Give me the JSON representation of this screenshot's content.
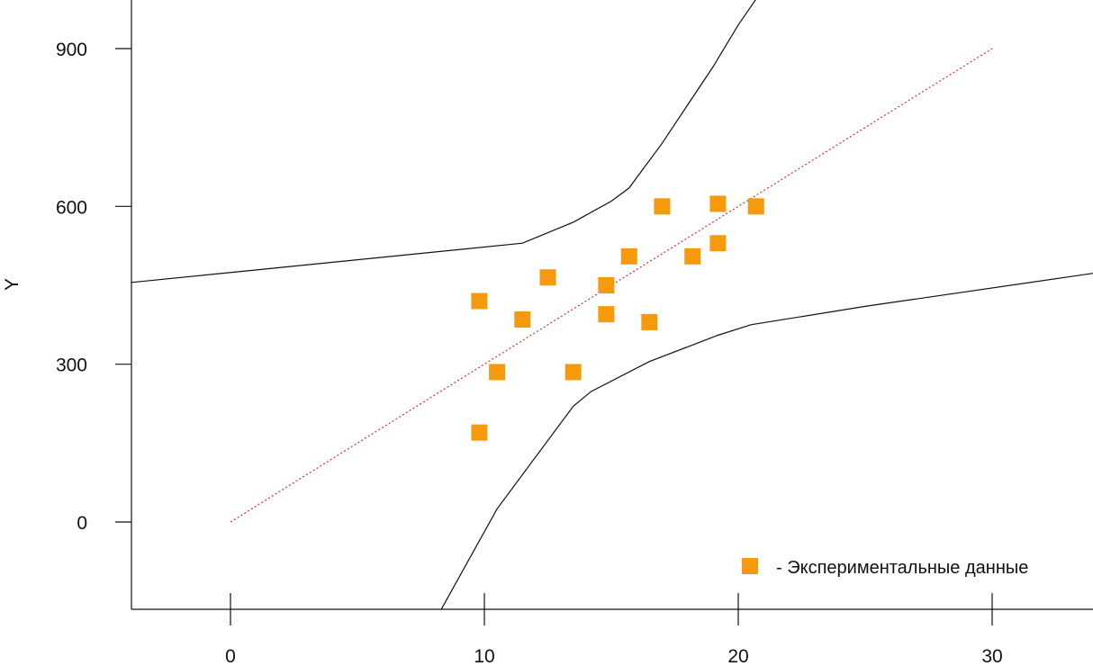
{
  "chart_data": {
    "type": "scatter",
    "xlabel": "",
    "ylabel": "Y",
    "xlim": [
      -4,
      35
    ],
    "ylim": [
      -165,
      1000
    ],
    "x_ticks": [
      {
        "value": 0,
        "label": "0"
      },
      {
        "value": 10,
        "label": "10"
      },
      {
        "value": 20,
        "label": "20"
      },
      {
        "value": 30,
        "label": "30"
      }
    ],
    "y_ticks": [
      {
        "value": 0,
        "label": "0"
      },
      {
        "value": 300,
        "label": "300"
      },
      {
        "value": 600,
        "label": "600"
      },
      {
        "value": 900,
        "label": "900"
      }
    ],
    "grid": false,
    "legend_position": "bottom-right",
    "legend": [
      {
        "label": "- Экспериментальные данные",
        "color": "#f59a0c",
        "marker": "square"
      }
    ],
    "series": [
      {
        "name": "- Экспериментальные данные",
        "color": "#f59a0c",
        "marker": "square",
        "points": [
          {
            "x": 9.8,
            "y": 420
          },
          {
            "x": 9.8,
            "y": 170
          },
          {
            "x": 10.5,
            "y": 285
          },
          {
            "x": 11.5,
            "y": 385
          },
          {
            "x": 12.5,
            "y": 465
          },
          {
            "x": 13.5,
            "y": 285
          },
          {
            "x": 14.8,
            "y": 450
          },
          {
            "x": 14.8,
            "y": 395
          },
          {
            "x": 15.7,
            "y": 505
          },
          {
            "x": 16.5,
            "y": 380
          },
          {
            "x": 17.0,
            "y": 600
          },
          {
            "x": 18.2,
            "y": 505
          },
          {
            "x": 19.2,
            "y": 530
          },
          {
            "x": 19.2,
            "y": 605
          },
          {
            "x": 20.7,
            "y": 600
          }
        ]
      }
    ],
    "lines": [
      {
        "role": "fit",
        "color": "#e0302a",
        "style": "dotted",
        "points": [
          {
            "x": 0,
            "y": 0
          },
          {
            "x": 30,
            "y": 900
          }
        ]
      },
      {
        "role": "upper-band",
        "color": "#111111",
        "style": "solid",
        "points": [
          {
            "x": -4,
            "y": 455
          },
          {
            "x": 11.5,
            "y": 530
          },
          {
            "x": 13.5,
            "y": 570
          },
          {
            "x": 15.0,
            "y": 610
          },
          {
            "x": 15.7,
            "y": 635
          },
          {
            "x": 17.0,
            "y": 720
          },
          {
            "x": 19.0,
            "y": 865
          },
          {
            "x": 20.0,
            "y": 945
          },
          {
            "x": 21.0,
            "y": 1015
          }
        ]
      },
      {
        "role": "lower-band",
        "color": "#111111",
        "style": "solid",
        "points": [
          {
            "x": 8.2,
            "y": -175
          },
          {
            "x": 10.5,
            "y": 25
          },
          {
            "x": 13.5,
            "y": 220
          },
          {
            "x": 14.2,
            "y": 248
          },
          {
            "x": 16.5,
            "y": 305
          },
          {
            "x": 19.2,
            "y": 355
          },
          {
            "x": 20.5,
            "y": 375
          },
          {
            "x": 25.0,
            "y": 410
          },
          {
            "x": 35.0,
            "y": 480
          }
        ]
      }
    ]
  }
}
